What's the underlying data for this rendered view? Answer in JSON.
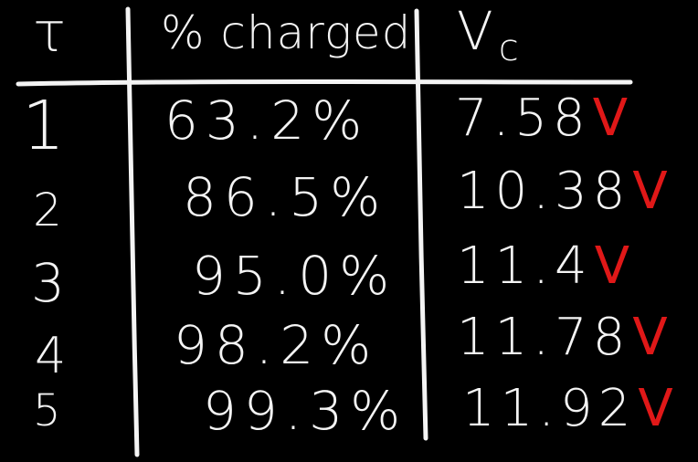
{
  "table": {
    "headers": {
      "tau": "τ",
      "charged": "% charged",
      "vc_main": "V",
      "vc_sub": "c"
    },
    "rows": [
      {
        "tau": "1",
        "charged": "63.2%",
        "vc": "7.58",
        "unit": "V"
      },
      {
        "tau": "2",
        "charged": "86.5%",
        "vc": "10.38",
        "unit": "V"
      },
      {
        "tau": "3",
        "charged": "95.0%",
        "vc": "11.4",
        "unit": "V"
      },
      {
        "tau": "4",
        "charged": "98.2%",
        "vc": "11.78",
        "unit": "V"
      },
      {
        "tau": "5",
        "charged": "99.3%",
        "vc": "11.92",
        "unit": "V"
      }
    ]
  },
  "colors": {
    "background": "#000000",
    "ink": "#f4f4f4",
    "unit_ink": "#e01818"
  }
}
